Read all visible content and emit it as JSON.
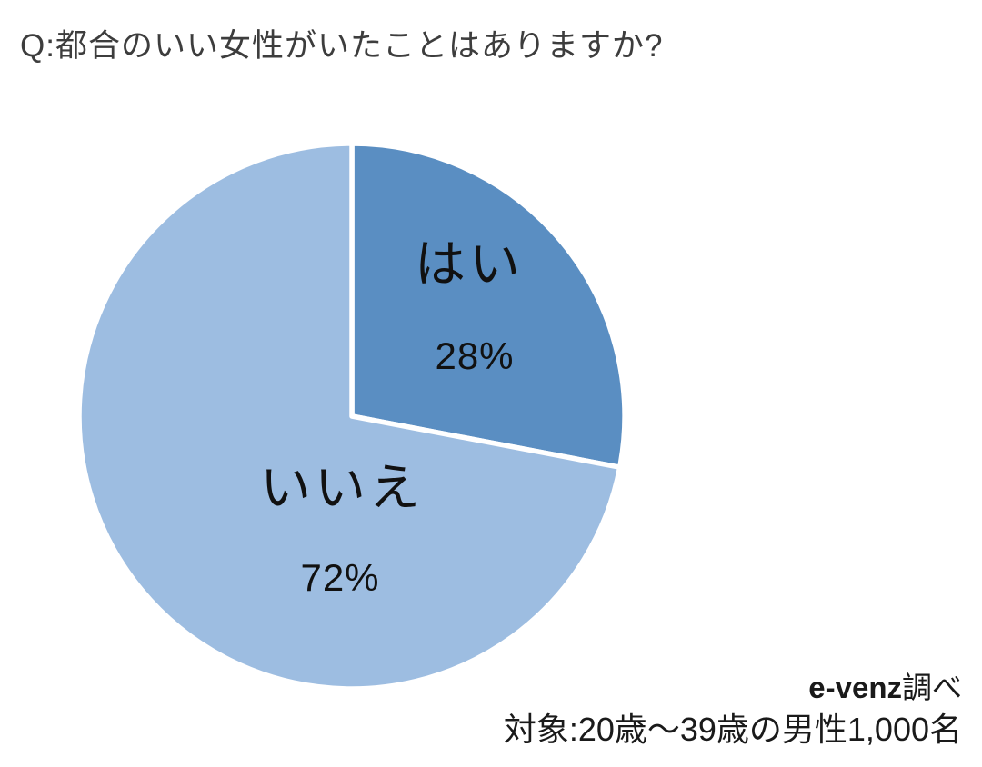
{
  "title": "Q:都合のいい女性がいたことはありますか?",
  "source": {
    "brand": "e-venz",
    "brand_suffix": "調べ",
    "target": "対象:20歳〜39歳の男性1,000名"
  },
  "chart_data": {
    "type": "pie",
    "title": "Q:都合のいい女性がいたことはありますか?",
    "categories": [
      "はい",
      "いいえ"
    ],
    "values": [
      28,
      72
    ],
    "unit": "%",
    "labels": [
      {
        "name": "はい",
        "pct": "28%"
      },
      {
        "name": "いいえ",
        "pct": "72%"
      }
    ],
    "colors": [
      "#5A8EC2",
      "#9DBDE1"
    ],
    "slice_border_color": "#ffffff",
    "start_angle_deg": -90,
    "direction": "clockwise",
    "legend": "none",
    "data_labels": "inside"
  }
}
